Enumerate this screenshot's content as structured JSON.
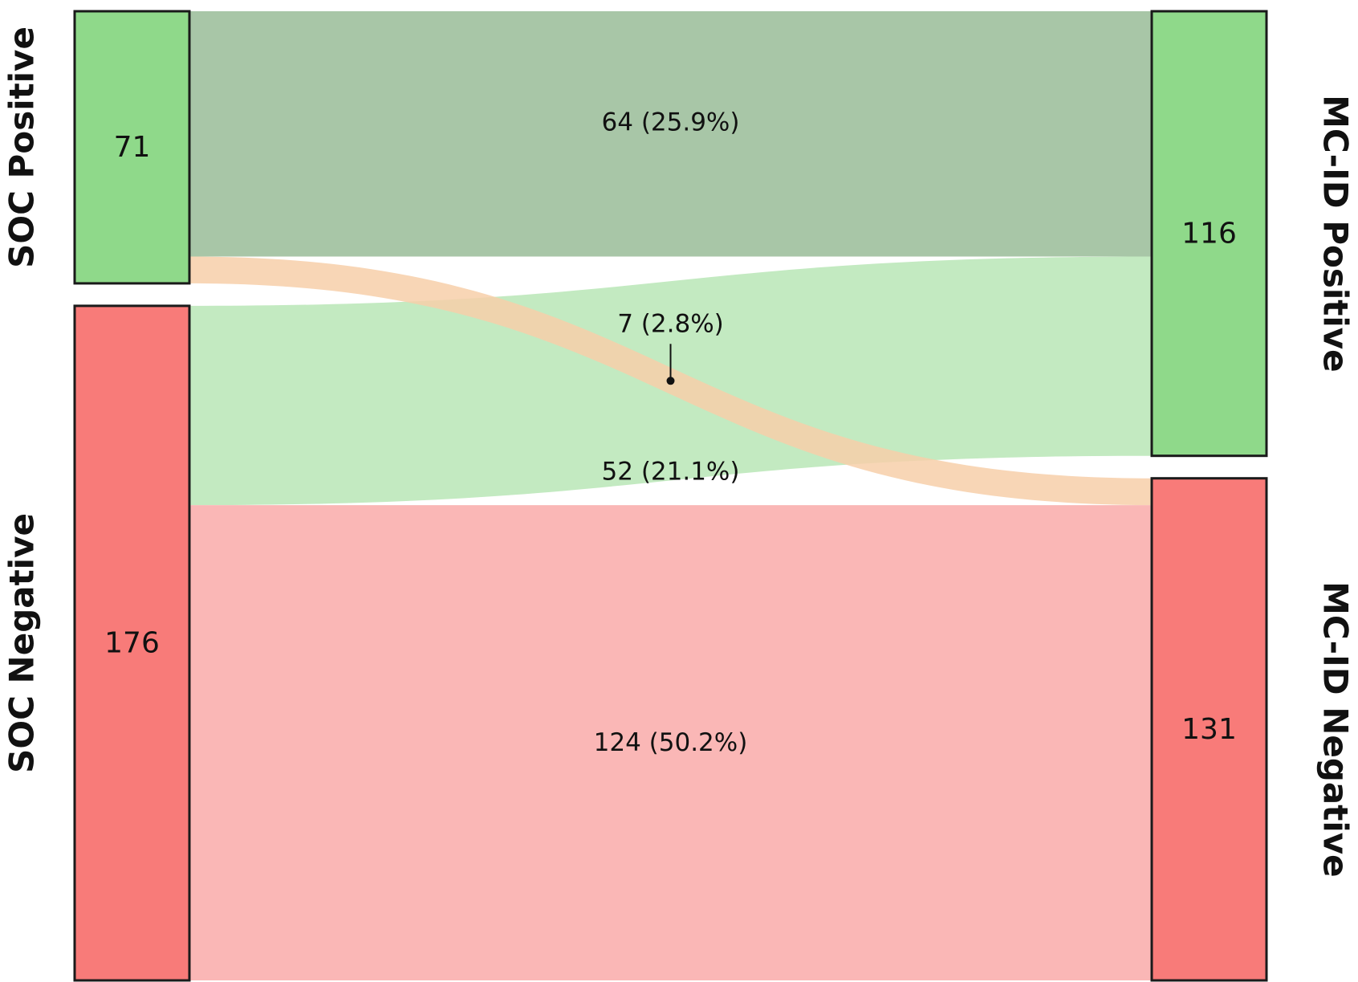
{
  "chart_data": {
    "type": "sankey",
    "nodes": {
      "left": [
        {
          "id": "soc_pos",
          "label": "SOC Positive",
          "value": 71,
          "value_label": "71",
          "color": "#8fd98a"
        },
        {
          "id": "soc_neg",
          "label": "SOC Negative",
          "value": 176,
          "value_label": "176",
          "color": "#f87b79"
        }
      ],
      "right": [
        {
          "id": "mcid_pos",
          "label": "MC-ID Positive",
          "value": 116,
          "value_label": "116",
          "color": "#8fd98a"
        },
        {
          "id": "mcid_neg",
          "label": "MC-ID Negative",
          "value": 131,
          "value_label": "131",
          "color": "#f87b79"
        }
      ]
    },
    "flows": [
      {
        "id": "pos_pos",
        "source": "soc_pos",
        "target": "mcid_pos",
        "value": 64,
        "label": "64 (25.9%)",
        "color": "#a8c6a7"
      },
      {
        "id": "pos_neg",
        "source": "soc_pos",
        "target": "mcid_neg",
        "value": 7,
        "label": "7 (2.8%)",
        "color": "#f7cfa9"
      },
      {
        "id": "neg_pos",
        "source": "soc_neg",
        "target": "mcid_pos",
        "value": 52,
        "label": "52 (21.1%)",
        "color": "#c3eac1"
      },
      {
        "id": "neg_neg",
        "source": "soc_neg",
        "target": "mcid_neg",
        "value": 124,
        "label": "124 (50.2%)",
        "color": "#fab7b6"
      }
    ]
  }
}
